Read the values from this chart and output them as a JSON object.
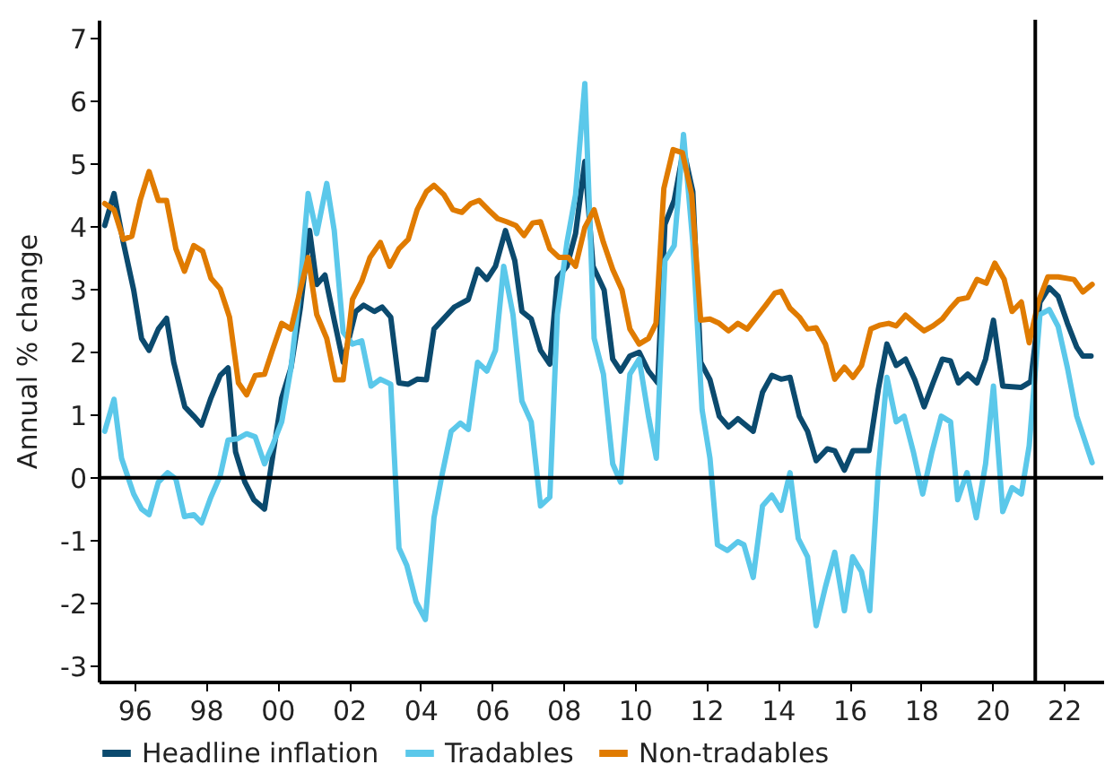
{
  "chart_data": {
    "type": "line",
    "ylabel": "Annual % change",
    "xlim": [
      1995,
      2023.1
    ],
    "ylim": [
      -3.25,
      7.3
    ],
    "xticks": [
      {
        "value": 1996,
        "label": "96"
      },
      {
        "value": 1998,
        "label": "98"
      },
      {
        "value": 2000,
        "label": "00"
      },
      {
        "value": 2002,
        "label": "02"
      },
      {
        "value": 2004,
        "label": "04"
      },
      {
        "value": 2006,
        "label": "06"
      },
      {
        "value": 2008,
        "label": "08"
      },
      {
        "value": 2010,
        "label": "10"
      },
      {
        "value": 2012,
        "label": "12"
      },
      {
        "value": 2014,
        "label": "14"
      },
      {
        "value": 2016,
        "label": "16"
      },
      {
        "value": 2018,
        "label": "18"
      },
      {
        "value": 2020,
        "label": "20"
      },
      {
        "value": 2022,
        "label": "22"
      }
    ],
    "yticks": [
      -3,
      -2,
      -1,
      0,
      1,
      2,
      3,
      4,
      5,
      6,
      7
    ],
    "grid": false,
    "legend": "bottom",
    "line_style": "solid",
    "ref_lines": [
      {
        "axis": "y",
        "value": 0,
        "color": "#000000"
      },
      {
        "axis": "x",
        "value": 2021.2,
        "color": "#000000"
      }
    ],
    "series": [
      {
        "name": "Headline inflation",
        "color": "#0b4a6e",
        "x": [
          1995.17,
          1995.43,
          1995.69,
          1995.98,
          1996.2,
          1996.41,
          1996.67,
          1996.9,
          1997.1,
          1997.41,
          1997.66,
          1997.88,
          1998.14,
          1998.4,
          1998.62,
          1998.83,
          1999.09,
          1999.34,
          1999.64,
          1999.86,
          2000.12,
          2000.38,
          2000.64,
          2000.9,
          2001.1,
          2001.33,
          2001.59,
          2001.84,
          2002.19,
          2002.41,
          2002.71,
          2002.93,
          2003.17,
          2003.4,
          2003.66,
          2003.91,
          2004.17,
          2004.38,
          2004.69,
          2004.95,
          2005.34,
          2005.6,
          2005.86,
          2006.1,
          2006.38,
          2006.64,
          2006.84,
          2007.1,
          2007.36,
          2007.62,
          2007.83,
          2008.1,
          2008.34,
          2008.6,
          2008.83,
          2009.14,
          2009.38,
          2009.6,
          2009.86,
          2010.12,
          2010.38,
          2010.64,
          2010.84,
          2011.1,
          2011.36,
          2011.62,
          2011.84,
          2012.1,
          2012.36,
          2012.62,
          2012.88,
          2013.31,
          2013.57,
          2013.83,
          2014.09,
          2014.34,
          2014.6,
          2014.83,
          2015.07,
          2015.38,
          2015.59,
          2015.86,
          2016.1,
          2016.55,
          2016.81,
          2017.05,
          2017.31,
          2017.57,
          2017.83,
          2018.09,
          2018.34,
          2018.6,
          2018.83,
          2019.05,
          2019.31,
          2019.57,
          2019.81,
          2020.03,
          2020.29,
          2020.81,
          2021.07,
          2021.33,
          2021.59,
          2021.84,
          2022.1,
          2022.36,
          2022.53,
          2022.76
        ],
        "values": [
          4.02,
          4.53,
          3.75,
          2.99,
          2.22,
          2.03,
          2.37,
          2.54,
          1.84,
          1.13,
          0.98,
          0.84,
          1.27,
          1.63,
          1.75,
          0.41,
          -0.07,
          -0.35,
          -0.5,
          0.31,
          1.27,
          1.75,
          2.7,
          3.94,
          3.08,
          3.23,
          2.51,
          1.84,
          2.65,
          2.75,
          2.65,
          2.72,
          2.56,
          1.51,
          1.49,
          1.57,
          1.56,
          2.37,
          2.56,
          2.72,
          2.84,
          3.32,
          3.16,
          3.37,
          3.94,
          3.46,
          2.65,
          2.53,
          2.03,
          1.81,
          3.18,
          3.37,
          3.89,
          5.04,
          3.37,
          2.99,
          1.89,
          1.7,
          1.94,
          2.0,
          1.7,
          1.51,
          4.04,
          4.42,
          5.23,
          4.56,
          1.84,
          1.56,
          0.98,
          0.81,
          0.94,
          0.74,
          1.36,
          1.63,
          1.57,
          1.6,
          0.98,
          0.74,
          0.27,
          0.46,
          0.43,
          0.12,
          0.43,
          0.43,
          1.41,
          2.13,
          1.79,
          1.89,
          1.56,
          1.13,
          1.51,
          1.89,
          1.86,
          1.51,
          1.65,
          1.51,
          1.89,
          2.51,
          1.46,
          1.44,
          1.53,
          2.8,
          3.03,
          2.89,
          2.46,
          2.08,
          1.94,
          1.94
        ]
      },
      {
        "name": "Tradables",
        "color": "#5bc8ea",
        "x": [
          1995.17,
          1995.43,
          1995.64,
          1995.98,
          1996.2,
          1996.41,
          1996.67,
          1996.93,
          1997.16,
          1997.4,
          1997.66,
          1997.88,
          1998.14,
          1998.4,
          1998.62,
          1998.88,
          1999.14,
          1999.38,
          1999.64,
          1999.86,
          2000.12,
          2000.38,
          2000.64,
          2000.86,
          2001.1,
          2001.38,
          2001.59,
          2001.84,
          2002.1,
          2002.36,
          2002.62,
          2002.88,
          2003.17,
          2003.4,
          2003.62,
          2003.88,
          2004.14,
          2004.38,
          2004.6,
          2004.86,
          2005.12,
          2005.34,
          2005.6,
          2005.86,
          2006.1,
          2006.33,
          2006.59,
          2006.84,
          2007.1,
          2007.36,
          2007.62,
          2007.83,
          2008.1,
          2008.34,
          2008.6,
          2008.86,
          2009.12,
          2009.38,
          2009.6,
          2009.86,
          2010.12,
          2010.38,
          2010.6,
          2010.84,
          2011.1,
          2011.36,
          2011.62,
          2011.88,
          2012.1,
          2012.31,
          2012.59,
          2012.88,
          2013.05,
          2013.31,
          2013.57,
          2013.83,
          2014.09,
          2014.34,
          2014.57,
          2014.83,
          2015.07,
          2015.33,
          2015.59,
          2015.86,
          2016.09,
          2016.34,
          2016.57,
          2016.81,
          2017.05,
          2017.31,
          2017.53,
          2017.79,
          2018.05,
          2018.31,
          2018.57,
          2018.83,
          2019.03,
          2019.29,
          2019.55,
          2019.81,
          2020.03,
          2020.29,
          2020.55,
          2020.81,
          2021.03,
          2021.33,
          2021.59,
          2021.84,
          2022.1,
          2022.36,
          2022.79
        ],
        "values": [
          0.74,
          1.25,
          0.31,
          -0.26,
          -0.5,
          -0.59,
          -0.07,
          0.08,
          -0.02,
          -0.62,
          -0.59,
          -0.72,
          -0.31,
          0.03,
          0.6,
          0.62,
          0.7,
          0.65,
          0.22,
          0.51,
          0.89,
          1.75,
          3.08,
          4.53,
          3.89,
          4.69,
          3.94,
          2.32,
          2.13,
          2.18,
          1.46,
          1.57,
          1.49,
          -1.12,
          -1.4,
          -1.98,
          -2.26,
          -0.64,
          0.03,
          0.74,
          0.87,
          0.77,
          1.84,
          1.7,
          2.03,
          3.37,
          2.6,
          1.22,
          0.89,
          -0.45,
          -0.31,
          2.6,
          3.75,
          4.51,
          6.28,
          2.22,
          1.65,
          0.22,
          -0.07,
          1.65,
          1.89,
          0.98,
          0.31,
          3.46,
          3.7,
          5.47,
          3.75,
          1.08,
          0.31,
          -1.07,
          -1.16,
          -1.02,
          -1.07,
          -1.59,
          -0.45,
          -0.28,
          -0.52,
          0.08,
          -0.97,
          -1.26,
          -2.36,
          -1.74,
          -1.19,
          -2.12,
          -1.26,
          -1.5,
          -2.12,
          0.12,
          1.6,
          0.89,
          0.98,
          0.41,
          -0.26,
          0.41,
          0.98,
          0.89,
          -0.35,
          0.08,
          -0.64,
          0.22,
          1.46,
          -0.54,
          -0.16,
          -0.26,
          0.51,
          2.6,
          2.68,
          2.41,
          1.75,
          0.98,
          0.24
        ]
      },
      {
        "name": "Non-tradables",
        "color": "#e07b00",
        "x": [
          1995.17,
          1995.43,
          1995.69,
          1995.93,
          1996.16,
          1996.41,
          1996.67,
          1996.9,
          1997.16,
          1997.4,
          1997.66,
          1997.91,
          1998.14,
          1998.4,
          1998.66,
          1998.91,
          1999.14,
          1999.38,
          1999.64,
          1999.86,
          2000.12,
          2000.38,
          2000.64,
          2000.86,
          2001.1,
          2001.38,
          2001.62,
          2001.84,
          2002.1,
          2002.36,
          2002.59,
          2002.88,
          2003.14,
          2003.4,
          2003.66,
          2003.91,
          2004.17,
          2004.38,
          2004.66,
          2004.91,
          2005.16,
          2005.41,
          2005.64,
          2005.9,
          2006.16,
          2006.41,
          2006.67,
          2006.9,
          2007.14,
          2007.36,
          2007.62,
          2007.88,
          2008.14,
          2008.34,
          2008.6,
          2008.86,
          2009.12,
          2009.38,
          2009.64,
          2009.86,
          2010.12,
          2010.38,
          2010.59,
          2010.81,
          2011.07,
          2011.33,
          2011.59,
          2011.84,
          2012.1,
          2012.36,
          2012.62,
          2012.88,
          2013.14,
          2013.4,
          2013.66,
          2013.91,
          2014.09,
          2014.34,
          2014.6,
          2014.83,
          2015.07,
          2015.33,
          2015.59,
          2015.86,
          2016.1,
          2016.34,
          2016.6,
          2016.84,
          2017.1,
          2017.31,
          2017.57,
          2017.83,
          2018.09,
          2018.34,
          2018.6,
          2018.83,
          2019.05,
          2019.31,
          2019.57,
          2019.83,
          2020.07,
          2020.33,
          2020.55,
          2020.81,
          2021.03,
          2021.29,
          2021.55,
          2021.84,
          2022.28,
          2022.53,
          2022.79
        ],
        "values": [
          4.37,
          4.27,
          3.8,
          3.85,
          4.42,
          4.88,
          4.42,
          4.42,
          3.65,
          3.29,
          3.7,
          3.61,
          3.18,
          3.01,
          2.56,
          1.51,
          1.32,
          1.63,
          1.65,
          2.03,
          2.46,
          2.37,
          2.99,
          3.51,
          2.6,
          2.22,
          1.56,
          1.56,
          2.84,
          3.13,
          3.51,
          3.75,
          3.37,
          3.65,
          3.8,
          4.27,
          4.56,
          4.66,
          4.51,
          4.27,
          4.23,
          4.37,
          4.42,
          4.27,
          4.13,
          4.08,
          4.02,
          3.86,
          4.06,
          4.08,
          3.65,
          3.51,
          3.51,
          3.37,
          3.99,
          4.27,
          3.75,
          3.32,
          2.99,
          2.37,
          2.13,
          2.22,
          2.46,
          4.61,
          5.23,
          5.18,
          4.51,
          2.51,
          2.53,
          2.46,
          2.34,
          2.46,
          2.37,
          2.56,
          2.75,
          2.94,
          2.97,
          2.7,
          2.56,
          2.37,
          2.39,
          2.13,
          1.57,
          1.76,
          1.6,
          1.79,
          2.37,
          2.43,
          2.46,
          2.42,
          2.59,
          2.46,
          2.34,
          2.42,
          2.53,
          2.7,
          2.84,
          2.87,
          3.16,
          3.1,
          3.42,
          3.16,
          2.65,
          2.8,
          2.15,
          2.81,
          3.2,
          3.2,
          3.16,
          2.96,
          3.08
        ]
      }
    ]
  }
}
